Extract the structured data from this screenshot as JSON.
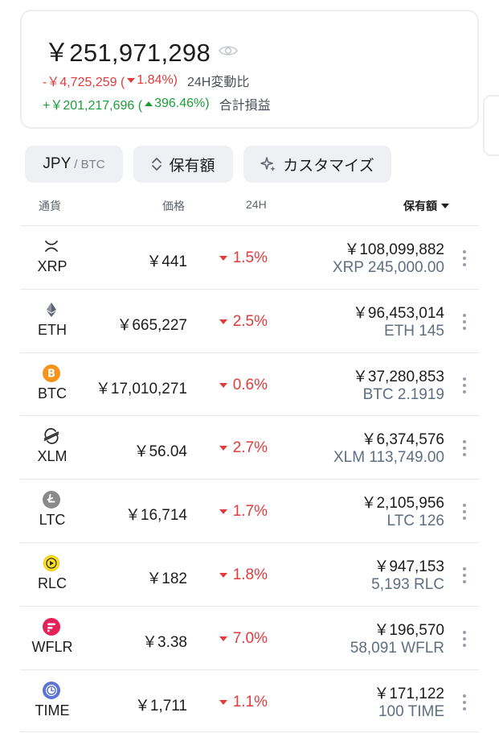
{
  "summary": {
    "total": "￥251,971,298",
    "change24h": {
      "amount": "-￥4,725,259 (",
      "pct": "1.84%)",
      "label": "24H変動比"
    },
    "pnl": {
      "amount": "+￥201,217,696 (",
      "pct": "396.46%)",
      "label": "合計損益"
    }
  },
  "toolbar": {
    "currency_main": "JPY",
    "currency_sub": "/ BTC",
    "holdings_label": "保有額",
    "customize_label": "カスタマイズ"
  },
  "columns": {
    "currency": "通貨",
    "price": "価格",
    "change": "24H",
    "holdings": "保有額"
  },
  "colors": {
    "negative": "#e03c3c",
    "positive": "#1c9d3a",
    "quantity": "#5f6f82",
    "button_bg": "#eef0f3"
  },
  "assets": [
    {
      "symbol": "XRP",
      "icon": "xrp-icon",
      "price": "￥441",
      "change": "1.5%",
      "value": "￥108,099,882",
      "quantity": "XRP 245,000.00"
    },
    {
      "symbol": "ETH",
      "icon": "eth-icon",
      "price": "￥665,227",
      "change": "2.5%",
      "value": "￥96,453,014",
      "quantity": "ETH 145"
    },
    {
      "symbol": "BTC",
      "icon": "btc-icon",
      "price": "￥17,010,271",
      "change": "0.6%",
      "value": "￥37,280,853",
      "quantity": "BTC 2.1919"
    },
    {
      "symbol": "XLM",
      "icon": "xlm-icon",
      "price": "￥56.04",
      "change": "2.7%",
      "value": "￥6,374,576",
      "quantity": "XLM 113,749.00"
    },
    {
      "symbol": "LTC",
      "icon": "ltc-icon",
      "price": "￥16,714",
      "change": "1.7%",
      "value": "￥2,105,956",
      "quantity": "LTC 126"
    },
    {
      "symbol": "RLC",
      "icon": "rlc-icon",
      "price": "￥182",
      "change": "1.8%",
      "value": "￥947,153",
      "quantity": "5,193 RLC"
    },
    {
      "symbol": "WFLR",
      "icon": "wflr-icon",
      "price": "￥3.38",
      "change": "7.0%",
      "value": "￥196,570",
      "quantity": "58,091 WFLR"
    },
    {
      "symbol": "TIME",
      "icon": "time-icon",
      "price": "￥1,711",
      "change": "1.1%",
      "value": "￥171,122",
      "quantity": "100 TIME"
    }
  ]
}
